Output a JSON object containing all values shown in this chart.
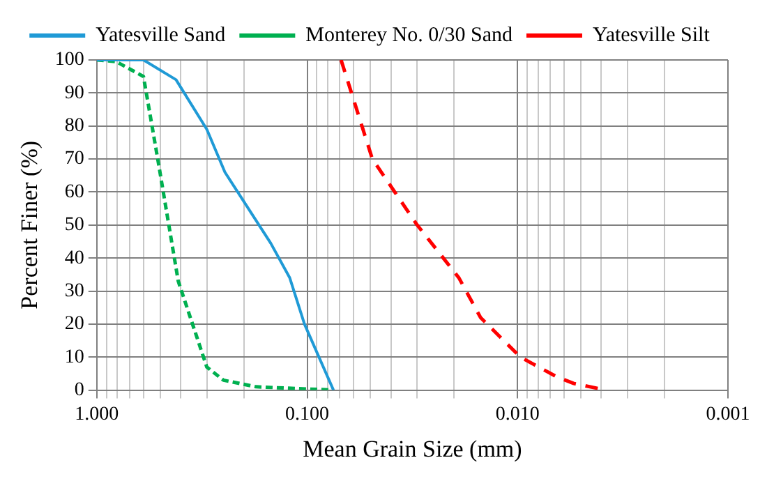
{
  "chart_data": {
    "type": "line",
    "xlabel": "Mean Grain Size (mm)",
    "ylabel": "Percent Finer (%)",
    "log": "x",
    "grid": true,
    "legend": "top",
    "marker": "none",
    "xlim": [
      1,
      0.001
    ],
    "ylim": [
      0,
      100
    ],
    "yticks": [
      0,
      10,
      20,
      30,
      40,
      50,
      60,
      70,
      80,
      90,
      100
    ],
    "xticks": [
      {
        "value": 1,
        "label": "1.000"
      },
      {
        "value": 0.9,
        "label": null
      },
      {
        "value": 0.8,
        "label": null
      },
      {
        "value": 0.7,
        "label": null
      },
      {
        "value": 0.6,
        "label": null
      },
      {
        "value": 0.5,
        "label": null
      },
      {
        "value": 0.4,
        "label": null
      },
      {
        "value": 0.3,
        "label": null
      },
      {
        "value": 0.2,
        "label": null
      },
      {
        "value": 0.1,
        "label": "0.100"
      },
      {
        "value": 0.09,
        "label": null
      },
      {
        "value": 0.08,
        "label": null
      },
      {
        "value": 0.07,
        "label": null
      },
      {
        "value": 0.06,
        "label": null
      },
      {
        "value": 0.05,
        "label": null
      },
      {
        "value": 0.04,
        "label": null
      },
      {
        "value": 0.03,
        "label": null
      },
      {
        "value": 0.02,
        "label": null
      },
      {
        "value": 0.01,
        "label": "0.010"
      },
      {
        "value": 0.009,
        "label": null
      },
      {
        "value": 0.008,
        "label": null
      },
      {
        "value": 0.007,
        "label": null
      },
      {
        "value": 0.006,
        "label": null
      },
      {
        "value": 0.005,
        "label": null
      },
      {
        "value": 0.004,
        "label": null
      },
      {
        "value": 0.003,
        "label": null
      },
      {
        "value": 0.002,
        "label": null
      },
      {
        "value": 0.001,
        "label": "0.001"
      }
    ],
    "series": [
      {
        "name": "Yatesville Sand",
        "color": "#1f9ad6",
        "line_style": "solid",
        "x": [
          1,
          0.6,
          0.42,
          0.3,
          0.246,
          0.149,
          0.121,
          0.103,
          0.075
        ],
        "values": [
          100,
          100,
          94,
          79,
          66,
          44.5,
          34,
          20,
          0
        ]
      },
      {
        "name": "Monterey No. 0/30 Sand",
        "color": "#00b050",
        "line_style": "dashed",
        "x": [
          1,
          0.81,
          0.6,
          0.51,
          0.41,
          0.3,
          0.25,
          0.175,
          0.075
        ],
        "values": [
          100,
          99.5,
          95,
          69,
          33,
          7,
          3,
          1,
          0
        ]
      },
      {
        "name": "Yatesville Silt",
        "color": "#ff0000",
        "line_style": "dashed",
        "x": [
          0.069,
          0.049,
          0.03,
          0.019,
          0.015,
          0.0097,
          0.0065,
          0.0054,
          0.0038
        ],
        "values": [
          100,
          70,
          50,
          34,
          22,
          10,
          4,
          2,
          0
        ]
      }
    ]
  }
}
